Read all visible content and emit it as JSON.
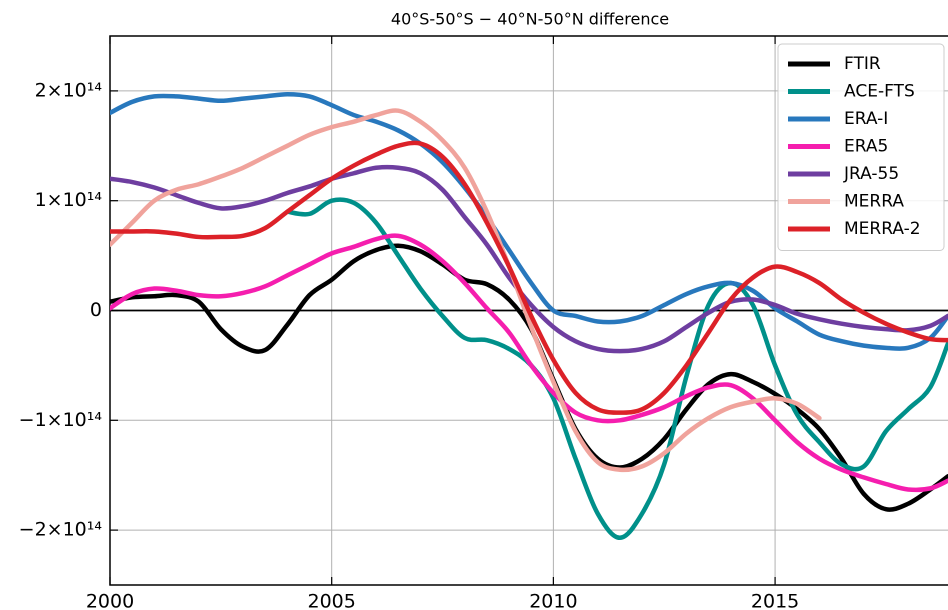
{
  "chart_data": {
    "type": "line",
    "title": "40°S-50°S − 40°N-50°N difference",
    "x": [
      2000,
      2000.5,
      2001,
      2001.5,
      2002,
      2002.5,
      2003,
      2003.5,
      2004,
      2004.5,
      2005,
      2005.5,
      2006,
      2006.5,
      2007,
      2007.5,
      2008,
      2008.5,
      2009,
      2009.5,
      2010,
      2010.5,
      2011,
      2011.5,
      2012,
      2012.5,
      2013,
      2013.5,
      2014,
      2014.5,
      2015,
      2015.5,
      2016,
      2016.5,
      2017,
      2017.5,
      2018,
      2018.5,
      2018.9
    ],
    "series": [
      {
        "name": "FTIR",
        "color": "#000000",
        "values": [
          8000000000000.0,
          12000000000000.0,
          13000000000000.0,
          14000000000000.0,
          8000000000000.0,
          -17000000000000.0,
          -33000000000000.0,
          -36000000000000.0,
          -13000000000000.0,
          14000000000000.0,
          28000000000000.0,
          45000000000000.0,
          55000000000000.0,
          59000000000000.0,
          54000000000000.0,
          42000000000000.0,
          28000000000000.0,
          24000000000000.0,
          10000000000000.0,
          -17000000000000.0,
          -63000000000000.0,
          -108000000000000.0,
          -135000000000000.0,
          -143000000000000.0,
          -135000000000000.0,
          -117000000000000.0,
          -90000000000000.0,
          -67000000000000.0,
          -58000000000000.0,
          -65000000000000.0,
          -76000000000000.0,
          -90000000000000.0,
          -108000000000000.0,
          -135000000000000.0,
          -167000000000000.0,
          -181000000000000.0,
          -176000000000000.0,
          -163000000000000.0,
          -151000000000000.0
        ]
      },
      {
        "name": "ACE-FTS",
        "color": "#00908a",
        "values": [
          null,
          null,
          null,
          null,
          null,
          null,
          null,
          null,
          90000000000000.0,
          88000000000000.0,
          100000000000000.0,
          98000000000000.0,
          80000000000000.0,
          50000000000000.0,
          20000000000000.0,
          -5000000000000.0,
          -25000000000000.0,
          -27000000000000.0,
          -35000000000000.0,
          -50000000000000.0,
          -80000000000000.0,
          -135000000000000.0,
          -185000000000000.0,
          -207000000000000.0,
          -185000000000000.0,
          -140000000000000.0,
          -60000000000000.0,
          5000000000000.0,
          25000000000000.0,
          5000000000000.0,
          -50000000000000.0,
          -95000000000000.0,
          -120000000000000.0,
          -140000000000000.0,
          -142000000000000.0,
          -110000000000000.0,
          -90000000000000.0,
          -70000000000000.0,
          -30000000000000.0
        ]
      },
      {
        "name": "ERA-I",
        "color": "#2878bd",
        "values": [
          180000000000000.0,
          190000000000000.0,
          195000000000000.0,
          195000000000000.0,
          193000000000000.0,
          191000000000000.0,
          193000000000000.0,
          195000000000000.0,
          197000000000000.0,
          195000000000000.0,
          187000000000000.0,
          178000000000000.0,
          172000000000000.0,
          164000000000000.0,
          152000000000000.0,
          135000000000000.0,
          112000000000000.0,
          85000000000000.0,
          55000000000000.0,
          25000000000000.0,
          0.0,
          -5000000000000.0,
          -10000000000000.0,
          -10000000000000.0,
          -5000000000000.0,
          5000000000000.0,
          15000000000000.0,
          22000000000000.0,
          25000000000000.0,
          18000000000000.0,
          2000000000000.0,
          -10000000000000.0,
          -22000000000000.0,
          -28000000000000.0,
          -32000000000000.0,
          -34000000000000.0,
          -34000000000000.0,
          -25000000000000.0,
          -5000000000000.0
        ]
      },
      {
        "name": "ERA5",
        "color": "#f51eae",
        "values": [
          2000000000000.0,
          15000000000000.0,
          20000000000000.0,
          18000000000000.0,
          14000000000000.0,
          13000000000000.0,
          16000000000000.0,
          22000000000000.0,
          32000000000000.0,
          42000000000000.0,
          52000000000000.0,
          58000000000000.0,
          65000000000000.0,
          68000000000000.0,
          60000000000000.0,
          45000000000000.0,
          25000000000000.0,
          2000000000000.0,
          -20000000000000.0,
          -50000000000000.0,
          -75000000000000.0,
          -93000000000000.0,
          -100000000000000.0,
          -100000000000000.0,
          -95000000000000.0,
          -88000000000000.0,
          -78000000000000.0,
          -70000000000000.0,
          -68000000000000.0,
          -80000000000000.0,
          -100000000000000.0,
          -120000000000000.0,
          -135000000000000.0,
          -145000000000000.0,
          -152000000000000.0,
          -158000000000000.0,
          -163000000000000.0,
          -162000000000000.0,
          -155000000000000.0
        ]
      },
      {
        "name": "JRA-55",
        "color": "#6e3ea0",
        "values": [
          120000000000000.0,
          117000000000000.0,
          112000000000000.0,
          105000000000000.0,
          98000000000000.0,
          93000000000000.0,
          95000000000000.0,
          100000000000000.0,
          107000000000000.0,
          113000000000000.0,
          120000000000000.0,
          125000000000000.0,
          130000000000000.0,
          130000000000000.0,
          125000000000000.0,
          110000000000000.0,
          85000000000000.0,
          60000000000000.0,
          30000000000000.0,
          5000000000000.0,
          -15000000000000.0,
          -28000000000000.0,
          -35000000000000.0,
          -37000000000000.0,
          -35000000000000.0,
          -28000000000000.0,
          -15000000000000.0,
          -2000000000000.0,
          8000000000000.0,
          10000000000000.0,
          5000000000000.0,
          -3000000000000.0,
          -8000000000000.0,
          -12000000000000.0,
          -15000000000000.0,
          -17000000000000.0,
          -18000000000000.0,
          -14000000000000.0,
          -5000000000000.0
        ]
      },
      {
        "name": "MERRA",
        "color": "#f0a39c",
        "values": [
          60000000000000.0,
          80000000000000.0,
          100000000000000.0,
          110000000000000.0,
          115000000000000.0,
          122000000000000.0,
          130000000000000.0,
          140000000000000.0,
          150000000000000.0,
          160000000000000.0,
          167000000000000.0,
          172000000000000.0,
          178000000000000.0,
          182000000000000.0,
          172000000000000.0,
          155000000000000.0,
          130000000000000.0,
          90000000000000.0,
          40000000000000.0,
          -15000000000000.0,
          -65000000000000.0,
          -110000000000000.0,
          -138000000000000.0,
          -145000000000000.0,
          -142000000000000.0,
          -130000000000000.0,
          -112000000000000.0,
          -98000000000000.0,
          -88000000000000.0,
          -83000000000000.0,
          -80000000000000.0,
          -85000000000000.0,
          -98000000000000.0,
          null,
          null,
          null,
          null,
          null,
          null
        ]
      },
      {
        "name": "MERRA-2",
        "color": "#dc2128",
        "values": [
          72000000000000.0,
          72000000000000.0,
          72000000000000.0,
          70000000000000.0,
          67000000000000.0,
          67000000000000.0,
          68000000000000.0,
          75000000000000.0,
          90000000000000.0,
          105000000000000.0,
          120000000000000.0,
          132000000000000.0,
          142000000000000.0,
          150000000000000.0,
          152000000000000.0,
          140000000000000.0,
          115000000000000.0,
          80000000000000.0,
          40000000000000.0,
          -5000000000000.0,
          -45000000000000.0,
          -75000000000000.0,
          -90000000000000.0,
          -93000000000000.0,
          -90000000000000.0,
          -75000000000000.0,
          -50000000000000.0,
          -20000000000000.0,
          10000000000000.0,
          30000000000000.0,
          40000000000000.0,
          35000000000000.0,
          25000000000000.0,
          10000000000000.0,
          -2000000000000.0,
          -12000000000000.0,
          -20000000000000.0,
          -26000000000000.0,
          -27000000000000.0
        ]
      }
    ],
    "xlim": [
      2000,
      2018.9
    ],
    "xticks": [
      2000,
      2005,
      2010,
      2015
    ],
    "ylim": [
      -250000000000000.0,
      250000000000000.0
    ],
    "yticks": [
      {
        "value": -200000000000000.0,
        "label": "−2×10¹⁴"
      },
      {
        "value": -100000000000000.0,
        "label": "−1×10¹⁴"
      },
      0,
      {
        "value": 100000000000000.0,
        "label": "1×10¹⁴"
      },
      {
        "value": 200000000000000.0,
        "label": "2×10¹⁴"
      }
    ],
    "hline": 0,
    "grid": true,
    "legend": "upper right"
  }
}
